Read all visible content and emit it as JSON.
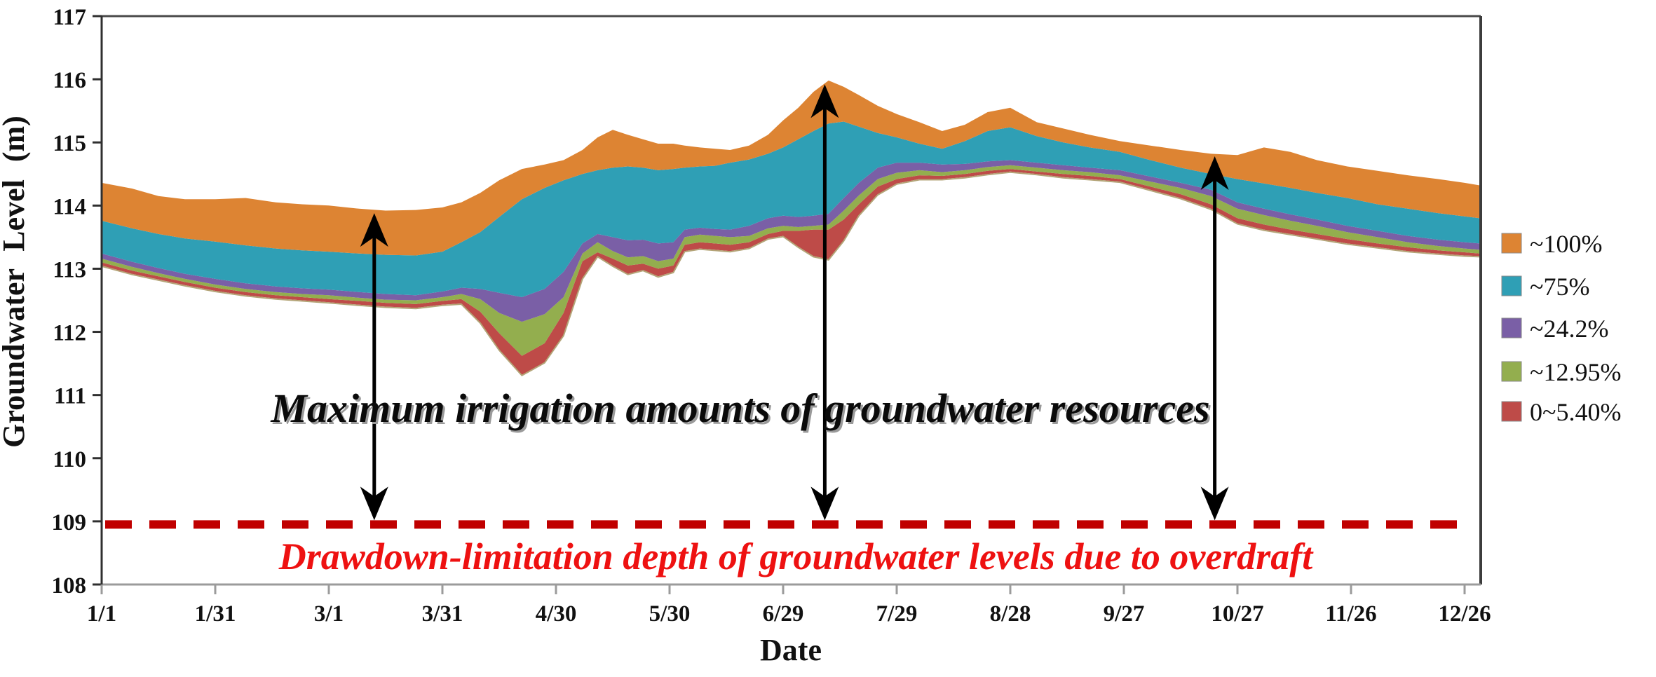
{
  "chart_data": {
    "type": "area",
    "title": "",
    "xlabel": "Date",
    "ylabel": "Groundwater Level (m)",
    "ylim": [
      108,
      117
    ],
    "grid": false,
    "legend_position": "right",
    "y_ticks": [
      117,
      116,
      115,
      114,
      113,
      112,
      111,
      110,
      109,
      108
    ],
    "x_tick_labels": [
      "1/1",
      "1/31",
      "3/1",
      "3/31",
      "4/30",
      "5/30",
      "6/29",
      "7/29",
      "8/28",
      "9/27",
      "10/27",
      "11/26",
      "12/26"
    ],
    "x_tick_days": [
      0,
      30,
      60,
      90,
      120,
      150,
      180,
      210,
      240,
      270,
      300,
      330,
      360
    ],
    "x_range_days": [
      0,
      364
    ],
    "legend": [
      {
        "label": "~100%",
        "color": "#DD8433"
      },
      {
        "label": "~75%",
        "color": "#2F9FB5"
      },
      {
        "label": "~24.2%",
        "color": "#7A5FA6"
      },
      {
        "label": "~12.95%",
        "color": "#93AE4E"
      },
      {
        "label": "0~5.40%",
        "color": "#BE4B48"
      }
    ],
    "days": [
      0,
      8,
      15,
      22,
      30,
      38,
      46,
      53,
      60,
      68,
      75,
      83,
      90,
      95,
      100,
      105,
      111,
      117,
      122,
      127,
      131,
      135,
      139,
      143,
      147,
      151,
      154,
      158,
      162,
      166,
      171,
      176,
      180,
      184,
      188,
      192,
      196,
      200,
      205,
      210,
      216,
      222,
      228,
      234,
      240,
      247,
      254,
      261,
      269,
      277,
      285,
      293,
      300,
      307,
      314,
      321,
      329,
      337,
      345,
      353,
      360,
      364
    ],
    "boundaries": {
      "bottom": [
        113.05,
        112.92,
        112.83,
        112.74,
        112.65,
        112.58,
        112.53,
        112.5,
        112.47,
        112.43,
        112.4,
        112.38,
        112.43,
        112.45,
        112.15,
        111.72,
        111.32,
        111.52,
        111.95,
        112.85,
        113.2,
        113.05,
        112.92,
        112.98,
        112.88,
        112.95,
        113.28,
        113.32,
        113.3,
        113.28,
        113.33,
        113.48,
        113.52,
        113.35,
        113.2,
        113.15,
        113.45,
        113.85,
        114.18,
        114.35,
        114.42,
        114.42,
        114.45,
        114.5,
        114.54,
        114.5,
        114.45,
        114.42,
        114.38,
        114.25,
        114.12,
        113.95,
        113.72,
        113.62,
        113.55,
        113.48,
        113.4,
        113.34,
        113.28,
        113.24,
        113.21,
        113.2
      ],
      "red_top": [
        113.1,
        112.97,
        112.88,
        112.79,
        112.7,
        112.63,
        112.58,
        112.55,
        112.52,
        112.49,
        112.46,
        112.44,
        112.49,
        112.52,
        112.32,
        111.98,
        111.62,
        111.82,
        112.3,
        113.12,
        113.26,
        113.16,
        113.05,
        113.08,
        113.0,
        113.05,
        113.38,
        113.42,
        113.4,
        113.38,
        113.42,
        113.55,
        113.6,
        113.6,
        113.62,
        113.62,
        113.78,
        114.02,
        114.3,
        114.42,
        114.48,
        114.47,
        114.5,
        114.55,
        114.58,
        114.54,
        114.5,
        114.47,
        114.42,
        114.3,
        114.18,
        114.02,
        113.8,
        113.7,
        113.62,
        113.55,
        113.47,
        113.4,
        113.34,
        113.29,
        113.26,
        113.24
      ],
      "green_top": [
        113.16,
        113.03,
        112.93,
        112.84,
        112.75,
        112.68,
        112.63,
        112.6,
        112.58,
        112.54,
        112.51,
        112.5,
        112.55,
        112.6,
        112.52,
        112.3,
        112.16,
        112.28,
        112.55,
        113.24,
        113.42,
        113.28,
        113.18,
        113.2,
        113.12,
        113.16,
        113.5,
        113.54,
        113.52,
        113.5,
        113.52,
        113.64,
        113.68,
        113.66,
        113.68,
        113.7,
        113.92,
        114.16,
        114.42,
        114.52,
        114.56,
        114.53,
        114.56,
        114.61,
        114.64,
        114.6,
        114.56,
        114.53,
        114.48,
        114.38,
        114.28,
        114.15,
        113.95,
        113.85,
        113.76,
        113.68,
        113.58,
        113.5,
        113.42,
        113.36,
        113.32,
        113.3
      ],
      "purple_top": [
        113.24,
        113.11,
        113.01,
        112.92,
        112.84,
        112.77,
        112.72,
        112.69,
        112.67,
        112.63,
        112.6,
        112.58,
        112.64,
        112.7,
        112.68,
        112.62,
        112.55,
        112.68,
        112.95,
        113.4,
        113.55,
        113.5,
        113.45,
        113.46,
        113.4,
        113.42,
        113.62,
        113.65,
        113.63,
        113.62,
        113.68,
        113.8,
        113.84,
        113.82,
        113.84,
        113.87,
        114.12,
        114.36,
        114.6,
        114.68,
        114.68,
        114.65,
        114.66,
        114.7,
        114.72,
        114.68,
        114.64,
        114.6,
        114.56,
        114.46,
        114.36,
        114.25,
        114.05,
        113.95,
        113.86,
        113.78,
        113.68,
        113.6,
        113.52,
        113.46,
        113.42,
        113.4
      ],
      "teal_top": [
        113.76,
        113.64,
        113.55,
        113.48,
        113.43,
        113.37,
        113.32,
        113.29,
        113.27,
        113.24,
        113.22,
        113.21,
        113.27,
        113.42,
        113.58,
        113.82,
        114.1,
        114.28,
        114.4,
        114.5,
        114.56,
        114.6,
        114.62,
        114.6,
        114.56,
        114.58,
        114.6,
        114.62,
        114.63,
        114.68,
        114.73,
        114.82,
        114.92,
        115.05,
        115.18,
        115.3,
        115.33,
        115.25,
        115.15,
        115.08,
        114.98,
        114.9,
        115.02,
        115.18,
        115.24,
        115.1,
        115.0,
        114.92,
        114.85,
        114.72,
        114.6,
        114.5,
        114.42,
        114.35,
        114.28,
        114.2,
        114.12,
        114.02,
        113.95,
        113.88,
        113.83,
        113.8
      ],
      "orange_top": [
        114.36,
        114.27,
        114.15,
        114.1,
        114.1,
        114.12,
        114.05,
        114.02,
        114.0,
        113.95,
        113.92,
        113.93,
        113.97,
        114.05,
        114.2,
        114.4,
        114.58,
        114.65,
        114.72,
        114.88,
        115.08,
        115.2,
        115.12,
        115.05,
        114.98,
        114.98,
        114.95,
        114.92,
        114.9,
        114.88,
        114.95,
        115.12,
        115.35,
        115.55,
        115.8,
        115.98,
        115.88,
        115.75,
        115.58,
        115.45,
        115.32,
        115.18,
        115.28,
        115.48,
        115.55,
        115.32,
        115.22,
        115.12,
        115.02,
        114.95,
        114.88,
        114.82,
        114.8,
        114.92,
        114.85,
        114.72,
        114.62,
        114.55,
        114.48,
        114.42,
        114.36,
        114.32
      ]
    },
    "bands": [
      {
        "name": "0~5.40%",
        "color": "#BE4B48",
        "lower": "bottom",
        "upper": "red_top"
      },
      {
        "name": "~12.95%",
        "color": "#93AE4E",
        "lower": "red_top",
        "upper": "green_top"
      },
      {
        "name": "~24.2%",
        "color": "#7A5FA6",
        "lower": "green_top",
        "upper": "purple_top"
      },
      {
        "name": "~75%",
        "color": "#2F9FB5",
        "lower": "purple_top",
        "upper": "teal_top"
      },
      {
        "name": "~100%",
        "color": "#DD8433",
        "lower": "teal_top",
        "upper": "orange_top"
      }
    ],
    "drawdown_line": {
      "value": 108.95,
      "color": "#C00000",
      "label": "Drawdown-limitation depth of groundwater levels due to overdraft",
      "label_color": "#ee1111"
    },
    "annotation": {
      "text": "Maximum irrigation amounts of groundwater resources"
    },
    "arrows": [
      {
        "day": 72,
        "top_value": 113.88
      },
      {
        "day": 191,
        "top_value": 115.92
      },
      {
        "day": 294,
        "top_value": 114.78
      }
    ]
  }
}
